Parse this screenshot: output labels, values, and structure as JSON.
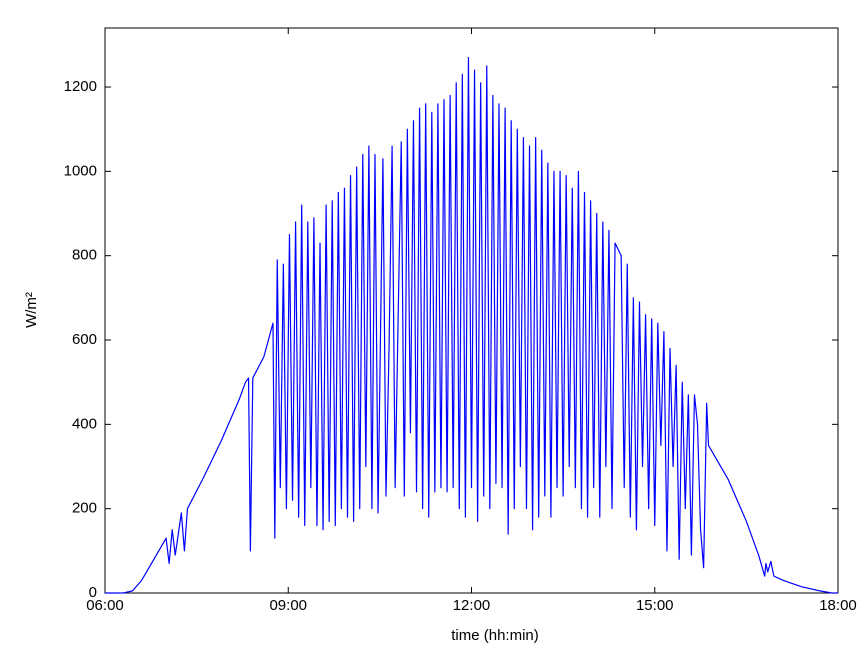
{
  "chart_data": {
    "type": "line",
    "xlabel": "time (hh:min)",
    "ylabel": "W/m²",
    "xlim": [
      6,
      18
    ],
    "ylim": [
      0,
      1340
    ],
    "xticks": [
      {
        "value": 6,
        "label": "06:00"
      },
      {
        "value": 9,
        "label": "09:00"
      },
      {
        "value": 12,
        "label": "12:00"
      },
      {
        "value": 15,
        "label": "15:00"
      },
      {
        "value": 18,
        "label": "18:00"
      }
    ],
    "yticks": [
      0,
      200,
      400,
      600,
      800,
      1000,
      1200
    ],
    "grid": false,
    "x": [
      6.0,
      6.3,
      6.45,
      6.6,
      6.8,
      7.0,
      7.05,
      7.1,
      7.15,
      7.25,
      7.3,
      7.35,
      7.6,
      7.9,
      8.2,
      8.3,
      8.35,
      8.38,
      8.42,
      8.6,
      8.75,
      8.78,
      8.82,
      8.87,
      8.92,
      8.97,
      9.02,
      9.07,
      9.12,
      9.17,
      9.22,
      9.27,
      9.32,
      9.37,
      9.42,
      9.47,
      9.52,
      9.57,
      9.62,
      9.67,
      9.72,
      9.77,
      9.82,
      9.87,
      9.92,
      9.97,
      10.02,
      10.07,
      10.12,
      10.17,
      10.22,
      10.27,
      10.32,
      10.37,
      10.42,
      10.47,
      10.55,
      10.6,
      10.65,
      10.7,
      10.75,
      10.85,
      10.9,
      10.95,
      11.0,
      11.05,
      11.1,
      11.15,
      11.2,
      11.25,
      11.3,
      11.35,
      11.4,
      11.45,
      11.5,
      11.55,
      11.6,
      11.65,
      11.7,
      11.75,
      11.8,
      11.85,
      11.9,
      11.95,
      12.0,
      12.05,
      12.1,
      12.15,
      12.2,
      12.25,
      12.3,
      12.35,
      12.4,
      12.45,
      12.5,
      12.55,
      12.6,
      12.65,
      12.7,
      12.75,
      12.8,
      12.85,
      12.9,
      12.95,
      13.0,
      13.05,
      13.1,
      13.15,
      13.2,
      13.25,
      13.3,
      13.35,
      13.4,
      13.45,
      13.5,
      13.55,
      13.6,
      13.65,
      13.7,
      13.75,
      13.8,
      13.85,
      13.9,
      13.95,
      14.0,
      14.05,
      14.1,
      14.15,
      14.2,
      14.25,
      14.3,
      14.35,
      14.45,
      14.5,
      14.55,
      14.6,
      14.65,
      14.7,
      14.75,
      14.8,
      14.85,
      14.9,
      14.95,
      15.0,
      15.05,
      15.1,
      15.15,
      15.2,
      15.25,
      15.3,
      15.35,
      15.4,
      15.45,
      15.5,
      15.55,
      15.6,
      15.65,
      15.7,
      15.75,
      15.8,
      15.85,
      15.88,
      16.2,
      16.5,
      16.7,
      16.8,
      16.82,
      16.85,
      16.9,
      16.95,
      17.1,
      17.4,
      17.7,
      17.9,
      18.0
    ],
    "series": [
      {
        "color": "#0000ff",
        "values": [
          0,
          0,
          5,
          30,
          80,
          130,
          70,
          150,
          90,
          190,
          100,
          200,
          270,
          360,
          460,
          500,
          510,
          100,
          510,
          560,
          640,
          130,
          790,
          250,
          780,
          200,
          850,
          220,
          880,
          180,
          920,
          160,
          880,
          250,
          890,
          160,
          830,
          150,
          920,
          170,
          930,
          160,
          950,
          200,
          960,
          180,
          990,
          170,
          1010,
          200,
          1040,
          300,
          1060,
          200,
          1040,
          190,
          1030,
          230,
          580,
          1060,
          250,
          1070,
          230,
          1100,
          380,
          1120,
          240,
          1150,
          200,
          1160,
          180,
          1140,
          240,
          1160,
          250,
          1170,
          240,
          1180,
          250,
          1210,
          200,
          1230,
          180,
          1270,
          250,
          1240,
          170,
          1210,
          230,
          1250,
          200,
          1180,
          260,
          1160,
          250,
          1150,
          140,
          1120,
          200,
          1100,
          300,
          1080,
          200,
          1060,
          150,
          1080,
          180,
          1050,
          230,
          1020,
          180,
          1000,
          250,
          1000,
          230,
          990,
          300,
          960,
          250,
          1000,
          200,
          950,
          180,
          930,
          250,
          900,
          180,
          880,
          300,
          860,
          200,
          830,
          800,
          250,
          780,
          180,
          700,
          150,
          690,
          300,
          660,
          200,
          650,
          160,
          640,
          350,
          620,
          100,
          580,
          300,
          540,
          80,
          500,
          200,
          470,
          90,
          470,
          400,
          150,
          60,
          450,
          350,
          270,
          170,
          90,
          40,
          70,
          50,
          75,
          40,
          30,
          15,
          5,
          0,
          0
        ]
      }
    ]
  }
}
